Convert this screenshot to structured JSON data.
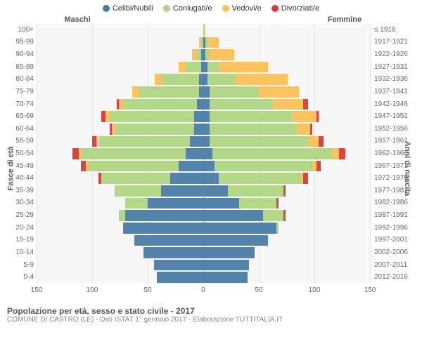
{
  "legend": {
    "items": [
      {
        "label": "Celibi/Nubili",
        "color": "#4a7ba6"
      },
      {
        "label": "Coniugati/e",
        "color": "#aed580"
      },
      {
        "label": "Vedovi/e",
        "color": "#fcc055"
      },
      {
        "label": "Divorziati/e",
        "color": "#d93a3a"
      }
    ]
  },
  "header": {
    "male": "Maschi",
    "female": "Femmine"
  },
  "axes": {
    "x_ticks": [
      150,
      100,
      50,
      0,
      50,
      100,
      150
    ],
    "x_max": 150,
    "y_left_title": "Fasce di età",
    "y_right_title": "Anni di nascita"
  },
  "colors": {
    "single": "#4a7ba6",
    "married": "#aed580",
    "widowed": "#fcc055",
    "divorced": "#d93a3a",
    "grid": "#e4e4e4",
    "plot_bg": "#f7f7f7"
  },
  "rows": [
    {
      "age": "0-4",
      "birth": "2012-2016",
      "m": [
        42,
        0,
        0,
        0
      ],
      "f": [
        40,
        0,
        0,
        0
      ]
    },
    {
      "age": "5-9",
      "birth": "2007-2011",
      "m": [
        44,
        0,
        0,
        0
      ],
      "f": [
        41,
        0,
        0,
        0
      ]
    },
    {
      "age": "10-14",
      "birth": "2002-2006",
      "m": [
        54,
        0,
        0,
        0
      ],
      "f": [
        46,
        0,
        0,
        0
      ]
    },
    {
      "age": "15-19",
      "birth": "1997-2001",
      "m": [
        62,
        0,
        0,
        0
      ],
      "f": [
        58,
        0,
        0,
        0
      ]
    },
    {
      "age": "20-24",
      "birth": "1992-1996",
      "m": [
        72,
        0,
        0,
        0
      ],
      "f": [
        66,
        2,
        0,
        0
      ]
    },
    {
      "age": "25-29",
      "birth": "1987-1991",
      "m": [
        70,
        6,
        0,
        0
      ],
      "f": [
        54,
        18,
        0,
        2
      ]
    },
    {
      "age": "30-34",
      "birth": "1982-1986",
      "m": [
        50,
        20,
        0,
        0
      ],
      "f": [
        32,
        34,
        0,
        2
      ]
    },
    {
      "age": "35-39",
      "birth": "1977-1981",
      "m": [
        38,
        42,
        0,
        0
      ],
      "f": [
        22,
        50,
        0,
        2
      ]
    },
    {
      "age": "40-44",
      "birth": "1972-1976",
      "m": [
        30,
        62,
        0,
        2
      ],
      "f": [
        14,
        74,
        2,
        4
      ]
    },
    {
      "age": "45-49",
      "birth": "1967-1971",
      "m": [
        22,
        82,
        2,
        4
      ],
      "f": [
        10,
        88,
        4,
        4
      ]
    },
    {
      "age": "50-54",
      "birth": "1962-1966",
      "m": [
        16,
        94,
        2,
        6
      ],
      "f": [
        8,
        108,
        6,
        6
      ]
    },
    {
      "age": "55-59",
      "birth": "1957-1961",
      "m": [
        12,
        82,
        2,
        4
      ],
      "f": [
        6,
        88,
        10,
        4
      ]
    },
    {
      "age": "60-64",
      "birth": "1952-1956",
      "m": [
        8,
        72,
        2,
        2
      ],
      "f": [
        6,
        78,
        12,
        2
      ]
    },
    {
      "age": "65-69",
      "birth": "1947-1951",
      "m": [
        8,
        76,
        4,
        4
      ],
      "f": [
        6,
        74,
        22,
        2
      ]
    },
    {
      "age": "70-74",
      "birth": "1942-1946",
      "m": [
        6,
        66,
        4,
        2
      ],
      "f": [
        6,
        56,
        28,
        4
      ]
    },
    {
      "age": "75-79",
      "birth": "1937-1941",
      "m": [
        4,
        54,
        6,
        0
      ],
      "f": [
        6,
        44,
        36,
        0
      ]
    },
    {
      "age": "80-84",
      "birth": "1932-1936",
      "m": [
        4,
        34,
        6,
        0
      ],
      "f": [
        4,
        26,
        46,
        0
      ]
    },
    {
      "age": "85-89",
      "birth": "1927-1931",
      "m": [
        2,
        14,
        6,
        0
      ],
      "f": [
        4,
        10,
        44,
        0
      ]
    },
    {
      "age": "90-94",
      "birth": "1922-1926",
      "m": [
        2,
        4,
        4,
        0
      ],
      "f": [
        2,
        4,
        22,
        0
      ]
    },
    {
      "age": "95-99",
      "birth": "1917-1921",
      "m": [
        0,
        2,
        2,
        0
      ],
      "f": [
        2,
        2,
        10,
        0
      ]
    },
    {
      "age": "100+",
      "birth": "≤ 1916",
      "m": [
        0,
        0,
        0,
        0
      ],
      "f": [
        0,
        0,
        2,
        0
      ]
    }
  ],
  "footer": {
    "title": "Popolazione per età, sesso e stato civile - 2017",
    "subtitle": "COMUNE DI CASTRO (LE) - Dati ISTAT 1° gennaio 2017 - Elaborazione TUTTITALIA.IT"
  }
}
